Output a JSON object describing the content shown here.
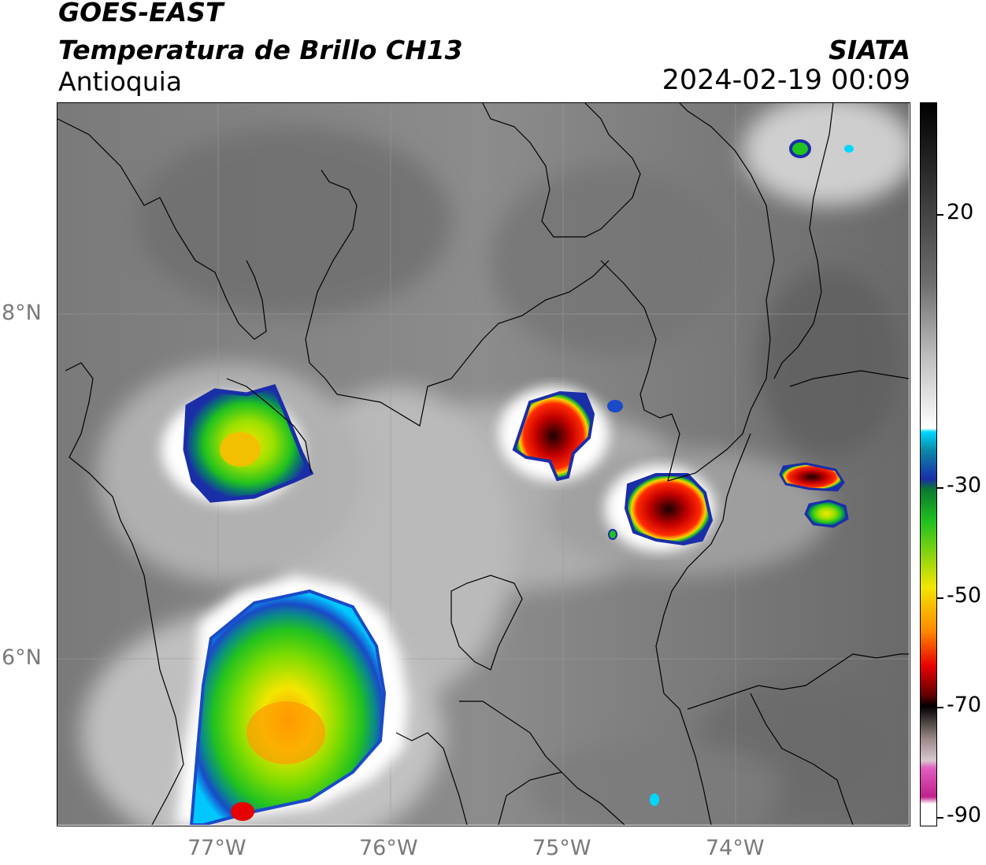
{
  "header": {
    "satellite": "GOES-EAST",
    "product": "Temperatura de Brillo CH13",
    "region": "Antioquia",
    "agency": "SIATA",
    "datetime": "2024-02-19 00:09"
  },
  "axes": {
    "lat_labels": [
      "8°N",
      "6°N"
    ],
    "lon_labels": [
      "77°W",
      "76°W",
      "75°W",
      "74°W"
    ]
  },
  "colorbar": {
    "ticks": [
      "20",
      "-30",
      "-50",
      "-70",
      "-90"
    ],
    "colors": {
      "warm_gray": "#6e6e6e",
      "cold_white": "#ffffff",
      "cyan": "#00d7ff",
      "blue": "#1a2ea8",
      "green": "#22c21f",
      "yellow": "#f2e600",
      "orange": "#ff8a00",
      "red": "#e60000",
      "black": "#000000",
      "magenta": "#c0208a"
    }
  }
}
